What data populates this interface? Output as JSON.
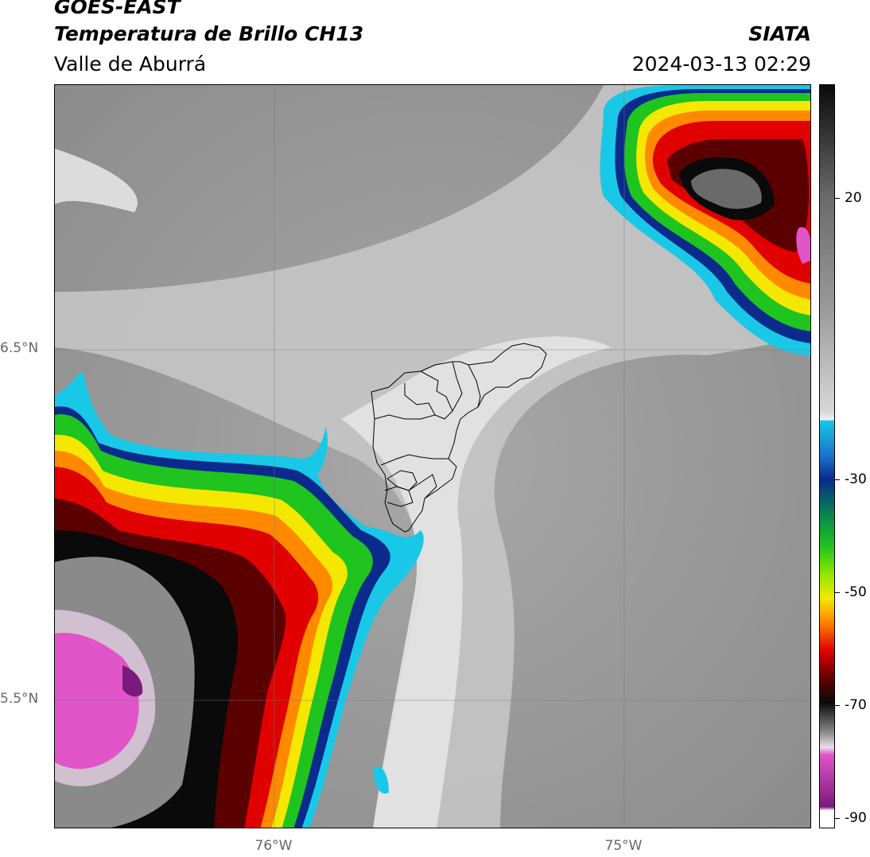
{
  "header": {
    "title_line1": "GOES-EAST",
    "title_line2": "Temperatura de Brillo CH13",
    "region": "Valle de Aburrá",
    "organization": "SIATA",
    "timestamp": "2024-03-13 02:29"
  },
  "axes": {
    "lat_labels": [
      "6.5°N",
      "5.5°N"
    ],
    "lon_labels": [
      "76°W",
      "75°W"
    ]
  },
  "colorbar": {
    "labels": [
      "20",
      "-30",
      "-50",
      "-70",
      "-90"
    ],
    "colors": {
      "cloud_warm": "#8f8f8f",
      "cloud_light": "#e8e8e8",
      "cyan": "#19c8e6",
      "dark_blue": "#0a2a8c",
      "green": "#1fc41f",
      "yellow": "#f5e800",
      "orange": "#ff8a00",
      "red": "#e00000",
      "dark_red": "#5a0000",
      "black": "#0a0a0a",
      "magenta": "#e055c8",
      "purple": "#7a1a7a"
    }
  }
}
